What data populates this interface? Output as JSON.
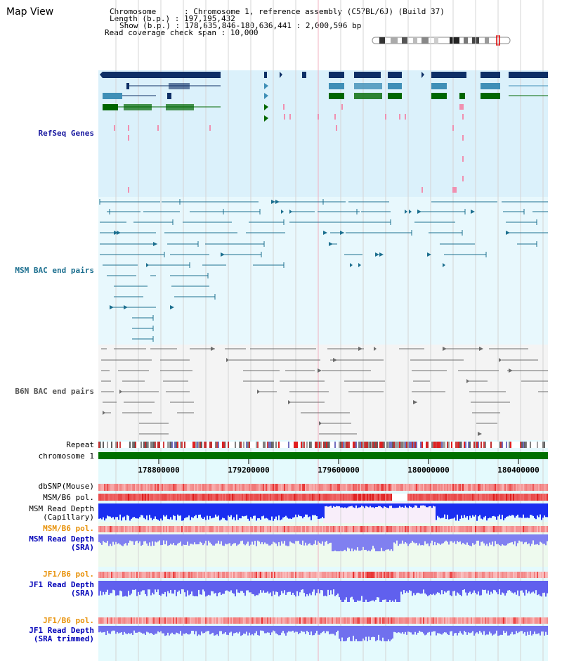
{
  "page": {
    "title": "Map View"
  },
  "info": {
    "chromosome_key": "Chromosome",
    "chromosome_val": ": Chromosome 1, reference assembly (C57BL/6J) (Build 37)",
    "length_key": "Length (b.p.)",
    "length_val": ": 197,195,432",
    "show_key": "Show (b.p.)",
    "show_val": ": 178,635,846-180,636,441 : 2,000,596 bp",
    "coverage_key": "Read coverage check span",
    "coverage_val": ": 10,000"
  },
  "tracks": {
    "refseq": "RefSeq Genes",
    "msm_bac": "MSM BAC end pairs",
    "b6n_bac": "B6N BAC end pairs",
    "repeat": "Repeat",
    "chromosome": "chromosome 1",
    "dbsnp": "dbSNP(Mouse)",
    "msm_b6_pol_1": "MSM/B6 pol.",
    "msm_depth_cap_1": "MSM Read Depth",
    "msm_depth_cap_2": "(Capillary)",
    "msm_b6_pol_2": "MSM/B6 pol.",
    "msm_depth_sra_1": "MSM Read Depth",
    "msm_depth_sra_2": "(SRA)",
    "jf1_b6_pol_1": "JF1/B6 pol.",
    "jf1_depth_sra_1": "JF1 Read Depth",
    "jf1_depth_sra_2": "(SRA)",
    "jf1_b6_pol_2": "JF1/B6 pol.",
    "jf1_depth_trim_1": "JF1 Read Depth",
    "jf1_depth_trim_2": "(SRA trimmed)"
  },
  "axis": {
    "ticks": [
      "178800000",
      "179200000",
      "179600000",
      "180000000",
      "180400000"
    ]
  },
  "colors": {
    "refseq_bg": "#dbf1fb",
    "msm_bg": "#e8f8fd",
    "b6n_bg": "#f4f4f4",
    "lower_bg": "#e4fafd",
    "gene_dark": "#0e2f66",
    "gene_mid": "#3f8fb7",
    "gene_green": "#006600",
    "msm_line": "#1c6f8f",
    "b6n_line": "#6c6c6c",
    "chrom_bar": "#007000",
    "pol_orange": "#e8920a",
    "depth_blue": "#0000b8"
  }
}
